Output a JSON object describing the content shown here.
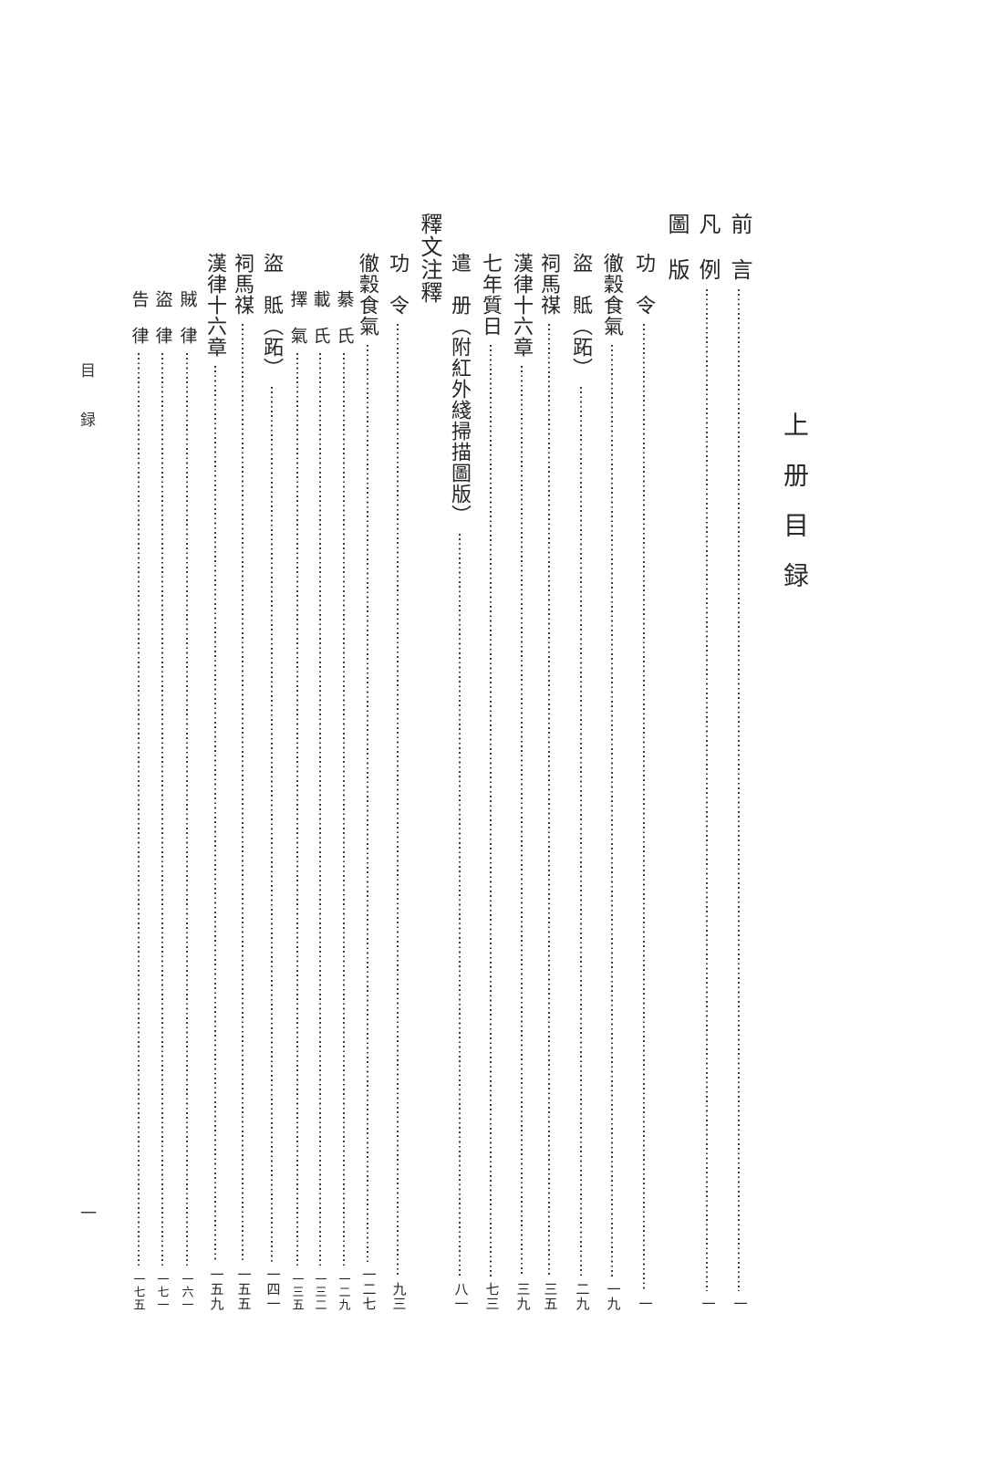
{
  "page": {
    "volume_title": "上册目録",
    "running_header": "目録",
    "folio": "一",
    "background": "#ffffff",
    "text_color": "#262626",
    "dot_color": "#3c3c3c"
  },
  "toc": {
    "items": [
      {
        "type": "part",
        "label": "前　言",
        "page": "一"
      },
      {
        "type": "part",
        "label": "凡　例",
        "page": "一"
      },
      {
        "type": "section",
        "label": "圖　版",
        "page": ""
      },
      {
        "type": "entry",
        "label": "功　令",
        "page": "一"
      },
      {
        "type": "entry",
        "label": "徹穀食氣",
        "page": "一九"
      },
      {
        "type": "entry",
        "label": "盜　貾（跖）",
        "page": "二九"
      },
      {
        "type": "entry",
        "label": "祠馬禖",
        "page": "三五"
      },
      {
        "type": "entry",
        "label": "漢律十六章",
        "page": "三九"
      },
      {
        "type": "entry",
        "label": "七年質日",
        "page": "七三"
      },
      {
        "type": "entry",
        "label": "遣　册（附紅外綫掃描圖版）",
        "page": "八一"
      },
      {
        "type": "section",
        "label": "釋文注釋",
        "page": ""
      },
      {
        "type": "entry",
        "label": "功　令",
        "page": "九三"
      },
      {
        "type": "entry",
        "label": "徹穀食氣",
        "page": "一二七"
      },
      {
        "type": "sub",
        "label": "綦　氏",
        "page": "一二九"
      },
      {
        "type": "sub",
        "label": "載　氏",
        "page": "一三二"
      },
      {
        "type": "sub",
        "label": "擇　氣",
        "page": "一三五"
      },
      {
        "type": "entry",
        "label": "盜　貾（跖）",
        "page": "一四一"
      },
      {
        "type": "entry",
        "label": "祠馬禖",
        "page": "一五五"
      },
      {
        "type": "entry",
        "label": "漢律十六章",
        "page": "一五九"
      },
      {
        "type": "sub",
        "label": "賊　律",
        "page": "一六一"
      },
      {
        "type": "sub",
        "label": "盜　律",
        "page": "一七一"
      },
      {
        "type": "sub",
        "label": "告　律",
        "page": "一七五"
      }
    ]
  }
}
